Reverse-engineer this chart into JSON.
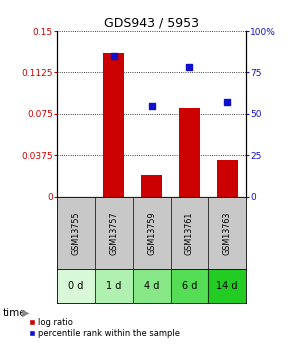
{
  "title": "GDS943 / 5953",
  "samples": [
    "GSM13755",
    "GSM13757",
    "GSM13759",
    "GSM13761",
    "GSM13763"
  ],
  "time_labels": [
    "0 d",
    "1 d",
    "4 d",
    "6 d",
    "14 d"
  ],
  "log_ratio": [
    0.0,
    0.13,
    0.02,
    0.08,
    0.033
  ],
  "percentile_rank": [
    null,
    85,
    55,
    78,
    57
  ],
  "ylim_left": [
    0,
    0.15
  ],
  "ylim_right": [
    0,
    100
  ],
  "yticks_left": [
    0,
    0.0375,
    0.075,
    0.1125,
    0.15
  ],
  "ytick_labels_left": [
    "0",
    "0.0375",
    "0.075",
    "0.1125",
    "0.15"
  ],
  "yticks_right": [
    0,
    25,
    50,
    75,
    100
  ],
  "ytick_labels_right": [
    "0",
    "25",
    "50",
    "75",
    "100%"
  ],
  "bar_color": "#cc0000",
  "scatter_color": "#1111cc",
  "gsm_row_color": "#c8c8c8",
  "bg_plot": "#ffffff",
  "legend_bar_label": "log ratio",
  "legend_scatter_label": "percentile rank within the sample",
  "time_colors": [
    "#d8f8d8",
    "#b0f0b0",
    "#88e888",
    "#55dd55",
    "#22cc22"
  ]
}
